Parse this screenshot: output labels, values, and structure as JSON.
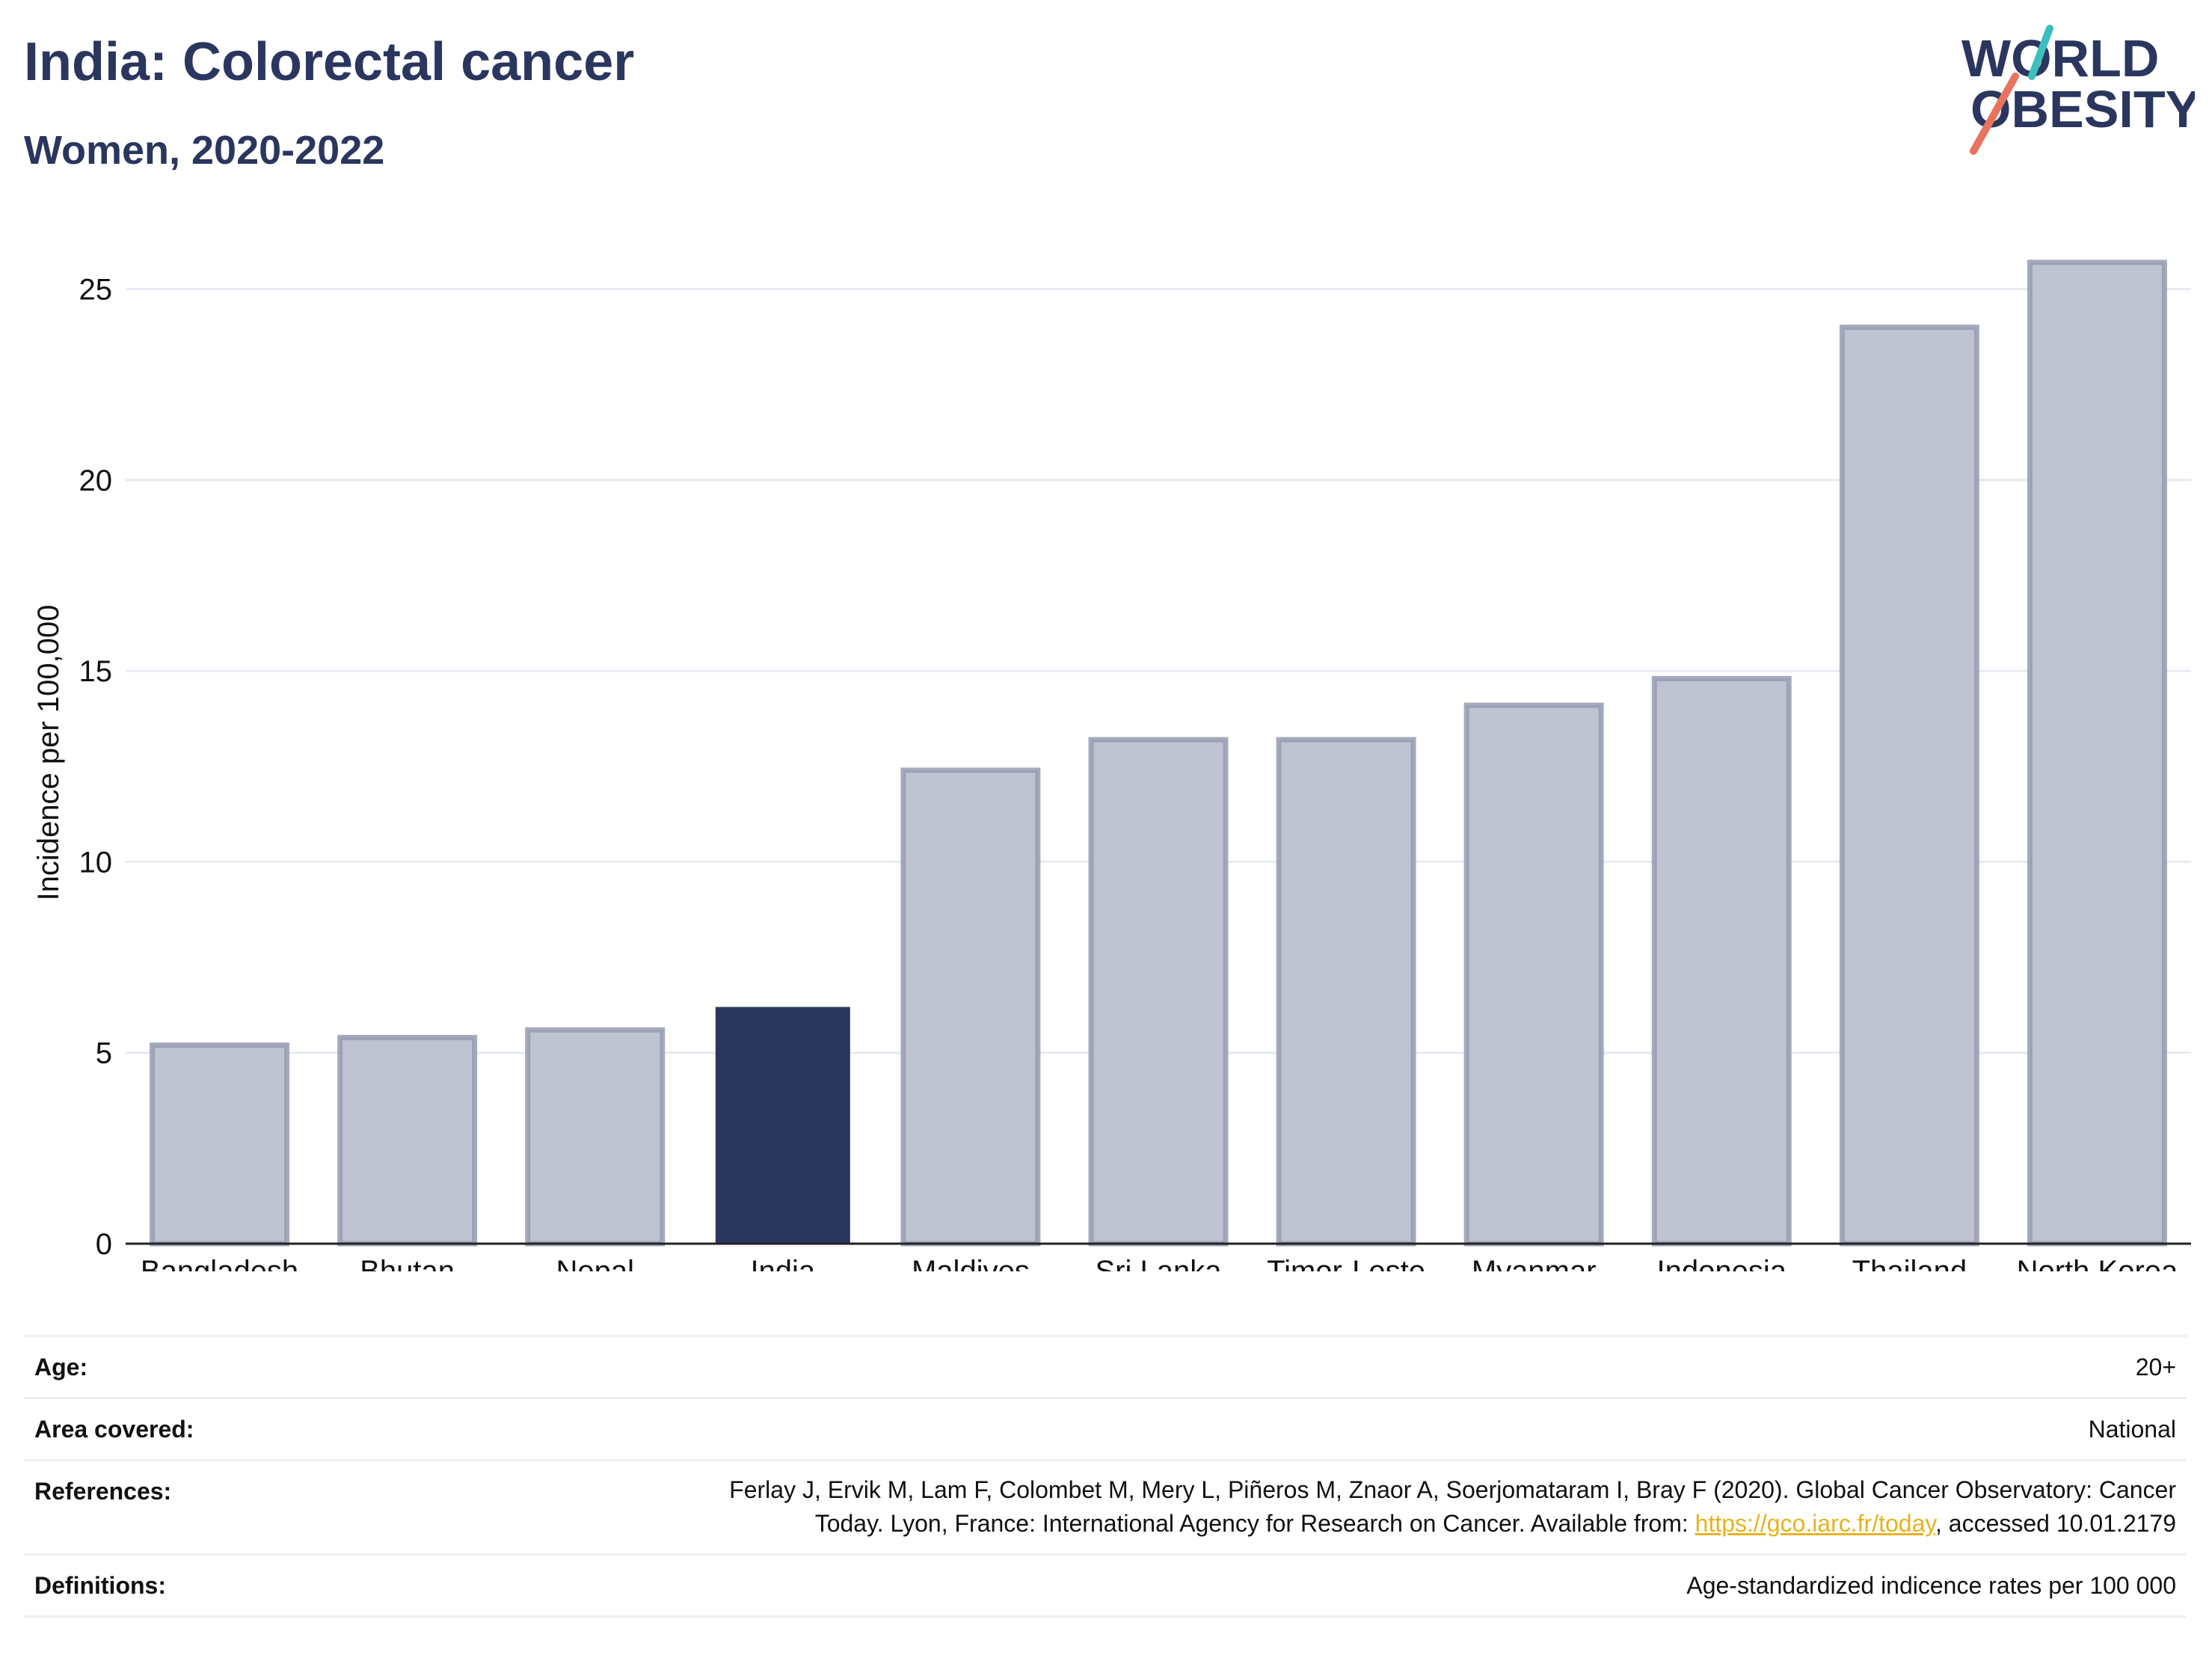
{
  "header": {
    "title": "India: Colorectal cancer",
    "subtitle": "Women, 2020-2022"
  },
  "logo": {
    "line1": "WORLD",
    "line2": "OBESITY",
    "colors": {
      "navy": "#2a365e",
      "teal": "#3bbfbf",
      "coral": "#e8735f"
    }
  },
  "colors": {
    "highlight": "#2a365e",
    "bar_fill": "#bfc3d1",
    "bar_edge": "#959bb0",
    "grid": "#e7ebf1",
    "link": "#e6b31e"
  },
  "chart_data": {
    "type": "bar",
    "categories": [
      "Bangladesh",
      "Bhutan",
      "Nepal",
      "India",
      "Maldives",
      "Sri Lanka",
      "Timor-Leste",
      "Myanmar",
      "Indonesia",
      "Thailand",
      "North Korea"
    ],
    "values": [
      5.2,
      5.4,
      5.6,
      6.2,
      12.4,
      13.2,
      13.2,
      14.1,
      14.8,
      24.0,
      25.7
    ],
    "highlight": "India",
    "ylabel": "Incidence per 100,000",
    "xlabel": "",
    "ylim": [
      0,
      26.5
    ],
    "yticks": [
      "0",
      "5",
      "10",
      "15",
      "20",
      "25"
    ],
    "grid": true
  },
  "meta": {
    "age": {
      "label": "Age:",
      "value": "20+"
    },
    "area": {
      "label": "Area covered:",
      "value": "National"
    },
    "references": {
      "label": "References:",
      "line1": "Ferlay J, Ervik M, Lam F, Colombet M, Mery L, Piñeros M, Znaor A, Soerjomataram I, Bray F (2020). Global Cancer Observatory: Cancer",
      "line2_pre": "Today. Lyon, France: International Agency for Research on Cancer. Available from: ",
      "link": "https://gco.iarc.fr/today",
      "line2_post": ", accessed 10.01.2179"
    },
    "definitions": {
      "label": "Definitions:",
      "value": "Age-standardized indicence rates per 100 000"
    }
  }
}
